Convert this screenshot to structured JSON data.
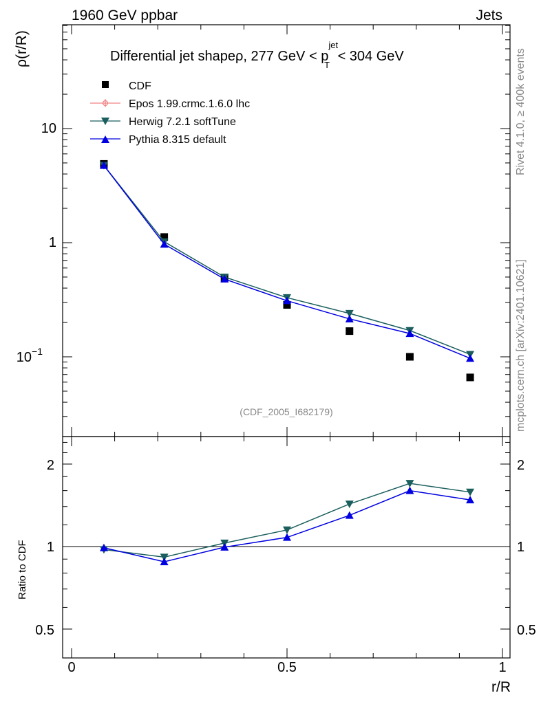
{
  "header": {
    "left_label": "1960 GeV ppbar",
    "right_label": "Jets"
  },
  "side_labels": {
    "rivet": "Rivet 4.1.0, ≥ 400k events",
    "mcplots": "mcplots.cern.ch [arXiv:2401.10621]"
  },
  "colors": {
    "CDF": "#000000",
    "Epos": "#f08080",
    "Herwig": "#1b5e5e",
    "Pythia": "#0000e0",
    "watermark": "#888888"
  },
  "chart_data": [
    {
      "type": "line",
      "scale": "log",
      "title": {
        "main": "Differential jet shapeρ, 277 GeV < p",
        "sup": "jet",
        "sub": "T",
        "tail": " < 304 GeV"
      },
      "xlabel": "r/R",
      "ylabel": "ρ(r/R)",
      "xlim": [
        -0.01,
        1.0
      ],
      "ylim": [
        0.025,
        72
      ],
      "x_ticks": [
        "0",
        "0.5",
        "1"
      ],
      "y_ticks": [
        "10",
        "1",
        "10"
      ],
      "y_tick_minus1_exp": "−1",
      "watermark": "(CDF_2005_I682179)",
      "x": [
        0.075,
        0.215,
        0.355,
        0.5,
        0.645,
        0.785,
        0.925
      ],
      "series": [
        {
          "name": "CDF",
          "marker": "square",
          "values": [
            4.9,
            1.12,
            0.49,
            0.285,
            0.168,
            0.1,
            0.066
          ]
        },
        {
          "name": "Epos 1.99.crmc.1.6.0 lhc",
          "marker": "open-cross",
          "values": [
            null,
            null,
            null,
            null,
            null,
            null,
            null
          ]
        },
        {
          "name": "Herwig 7.2.1 softTune",
          "marker": "triangle-down",
          "values": [
            4.75,
            1.02,
            0.5,
            0.33,
            0.24,
            0.17,
            0.105
          ]
        },
        {
          "name": "Pythia 8.315 default",
          "marker": "triangle-up",
          "values": [
            4.75,
            0.97,
            0.48,
            0.31,
            0.215,
            0.16,
            0.097
          ]
        }
      ]
    },
    {
      "type": "line",
      "scale": "log",
      "ylabel": "Ratio to CDF",
      "xlabel": "r/R",
      "xlim": [
        -0.01,
        1.0
      ],
      "ylim": [
        0.4,
        2.5
      ],
      "y_ticks": [
        "2",
        "1",
        "0.5"
      ],
      "x": [
        0.075,
        0.215,
        0.355,
        0.5,
        0.645,
        0.785,
        0.925
      ],
      "series": [
        {
          "name": "Herwig 7.2.1 softTune",
          "marker": "triangle-down",
          "values": [
            0.975,
            0.915,
            1.03,
            1.15,
            1.43,
            1.7,
            1.58
          ]
        },
        {
          "name": "Pythia 8.315 default",
          "marker": "triangle-up",
          "values": [
            0.99,
            0.88,
            0.995,
            1.08,
            1.3,
            1.6,
            1.48
          ]
        }
      ]
    }
  ]
}
